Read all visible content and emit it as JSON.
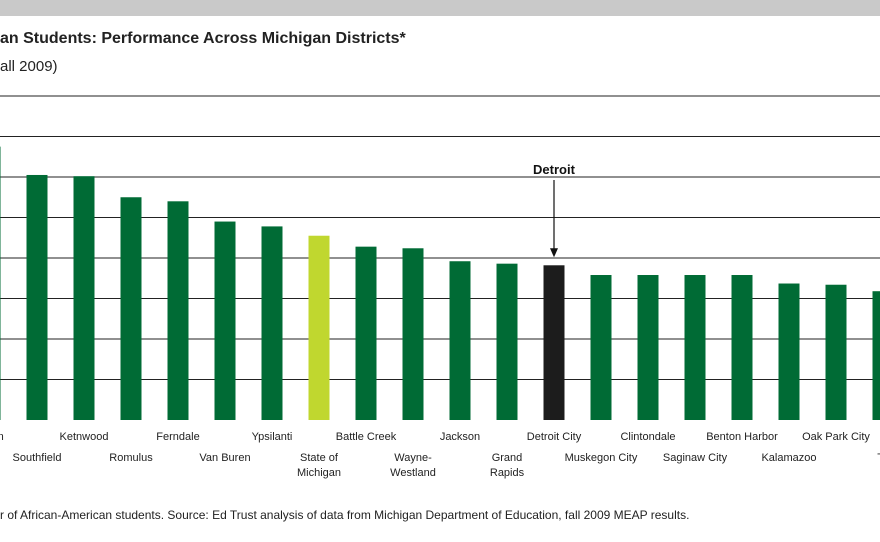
{
  "header": {
    "title": "an Students: Performance Across Michigan Districts*",
    "subtitle": "all 2009)"
  },
  "footnote": "r of African-American students. Source:  Ed Trust analysis of data from Michigan Department of Education, fall 2009 MEAP results.",
  "colors": {
    "district": "#006b35",
    "state": "#c0d72f",
    "highlight": "#1c1c1c",
    "gridline": "#222222",
    "band": "#c9c9c9"
  },
  "chart_data": {
    "type": "bar",
    "title": "an Students: Performance Across Michigan Districts*",
    "subtitle": "all 2009)",
    "xlabel": "",
    "ylabel": "",
    "ylim": [
      0,
      8
    ],
    "grid": true,
    "categories": [
      "ngton",
      "Southfield",
      "Ketnwood",
      "Romulus",
      "Ferndale",
      "Van Buren",
      "Ypsilanti",
      "State of Michigan",
      "Battle Creek",
      "Wayne-Westland",
      "Jackson",
      "Grand Rapids",
      "Detroit City",
      "Muskegon City",
      "Clintondale",
      "Saginaw City",
      "Benton Harbor",
      "Kalamazoo",
      "Oak Park City",
      "Ta"
    ],
    "tick_lines": [
      [
        "ngton"
      ],
      [
        "Southfield"
      ],
      [
        "Ketnwood"
      ],
      [
        "Romulus"
      ],
      [
        "Ferndale"
      ],
      [
        "Van Buren"
      ],
      [
        "Ypsilanti"
      ],
      [
        "State of",
        "Michigan"
      ],
      [
        "Battle Creek"
      ],
      [
        "Wayne-",
        "Westland"
      ],
      [
        "Jackson"
      ],
      [
        "Grand",
        "Rapids"
      ],
      [
        "Detroit City"
      ],
      [
        "Muskegon City"
      ],
      [
        "Clintondale"
      ],
      [
        "Saginaw City"
      ],
      [
        "Benton Harbor"
      ],
      [
        "Kalamazoo"
      ],
      [
        "Oak Park City"
      ],
      [
        "Ta"
      ]
    ],
    "label_row": [
      0,
      1,
      0,
      1,
      0,
      1,
      0,
      1,
      0,
      1,
      0,
      1,
      0,
      1,
      0,
      1,
      0,
      1,
      0,
      1
    ],
    "values": [
      6.75,
      6.05,
      6.02,
      5.5,
      5.4,
      4.9,
      4.78,
      4.55,
      4.28,
      4.24,
      3.92,
      3.86,
      3.82,
      3.58,
      3.58,
      3.58,
      3.58,
      3.37,
      3.34,
      3.18
    ],
    "bar_kind": [
      "district",
      "district",
      "district",
      "district",
      "district",
      "district",
      "district",
      "state",
      "district",
      "district",
      "district",
      "district",
      "highlight",
      "district",
      "district",
      "district",
      "district",
      "district",
      "district",
      "district"
    ],
    "annotations": [
      {
        "text": "Detroit",
        "category": "Detroit City"
      }
    ]
  }
}
